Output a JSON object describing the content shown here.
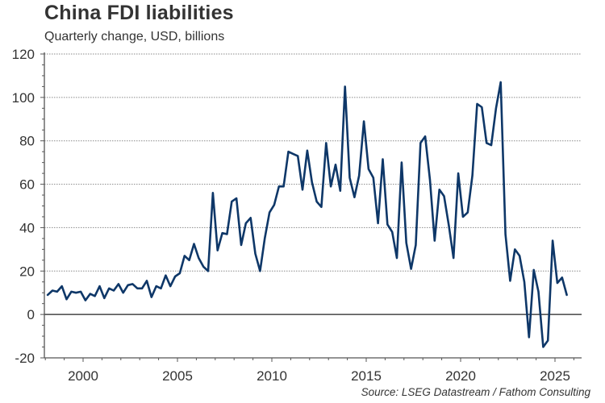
{
  "chart_data": {
    "type": "line",
    "title": "China FDI liabilities",
    "subtitle": "Quarterly change, USD, billions",
    "source": "Source: LSEG Datastream / Fathom Consulting",
    "xlabel": "",
    "ylabel": "",
    "xlim": [
      1998.0,
      2026.5
    ],
    "ylim": [
      -20,
      120
    ],
    "yticks": [
      -20,
      0,
      20,
      40,
      60,
      80,
      100,
      120
    ],
    "xticks": [
      2000,
      2005,
      2010,
      2015,
      2020,
      2025
    ],
    "ytick_labels": [
      "-20",
      "0",
      "20",
      "40",
      "60",
      "80",
      "100",
      "120"
    ],
    "xtick_labels": [
      "2000",
      "2005",
      "2010",
      "2015",
      "2020",
      "2025"
    ],
    "grid": "horizontal-dotted",
    "legend": "none",
    "line_color": "#0e3768",
    "start_period": "1998Q1",
    "frequency": "quarterly",
    "series": [
      {
        "name": "China FDI liabilities",
        "values": [
          9,
          11,
          10.5,
          13,
          7,
          10.5,
          10,
          10.5,
          6.5,
          9.5,
          8.5,
          13,
          7.5,
          12,
          11,
          14,
          10,
          13.5,
          14,
          12,
          12,
          15.5,
          8,
          13,
          12,
          18,
          13,
          17.5,
          19,
          27,
          25,
          32.5,
          26,
          22,
          20,
          56,
          29.5,
          37.5,
          37,
          52,
          53.5,
          32,
          42,
          44.5,
          28,
          20,
          35,
          47,
          50.5,
          59,
          59,
          75,
          74,
          73,
          57.5,
          75.5,
          61,
          52,
          49.5,
          79,
          59,
          69,
          57,
          105,
          63,
          54,
          64,
          89,
          67,
          63,
          42,
          71.5,
          41.5,
          38,
          26,
          70,
          33,
          21,
          32,
          79,
          82,
          62,
          34,
          57.5,
          54.5,
          41,
          26,
          65,
          45,
          47,
          64,
          97,
          95.5,
          79,
          78,
          95,
          107,
          37,
          15.5,
          30,
          27,
          15,
          -10.5,
          20.5,
          10.5,
          -15,
          -12,
          34,
          14.5,
          17,
          9
        ]
      }
    ]
  }
}
